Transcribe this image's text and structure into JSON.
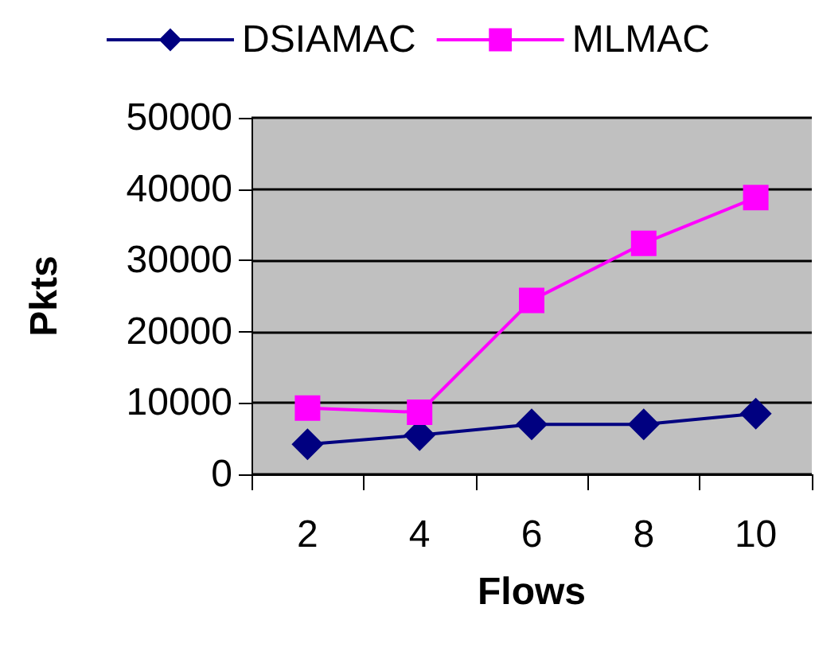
{
  "chart_data": {
    "type": "line",
    "xlabel": "Flows",
    "ylabel": "Pkts",
    "categories": [
      "2",
      "4",
      "6",
      "8",
      "10"
    ],
    "series": [
      {
        "name": "DSIAMAC",
        "color": "#000080",
        "marker": "diamond",
        "values": [
          4200,
          5500,
          7000,
          7000,
          8500
        ]
      },
      {
        "name": "MLMAC",
        "color": "#ff00ff",
        "marker": "square",
        "values": [
          9300,
          8700,
          24400,
          32400,
          38800
        ]
      }
    ],
    "ylim": [
      0,
      50000
    ],
    "yticks": [
      0,
      10000,
      20000,
      30000,
      40000,
      50000
    ],
    "grid": "y",
    "legend": "top"
  }
}
